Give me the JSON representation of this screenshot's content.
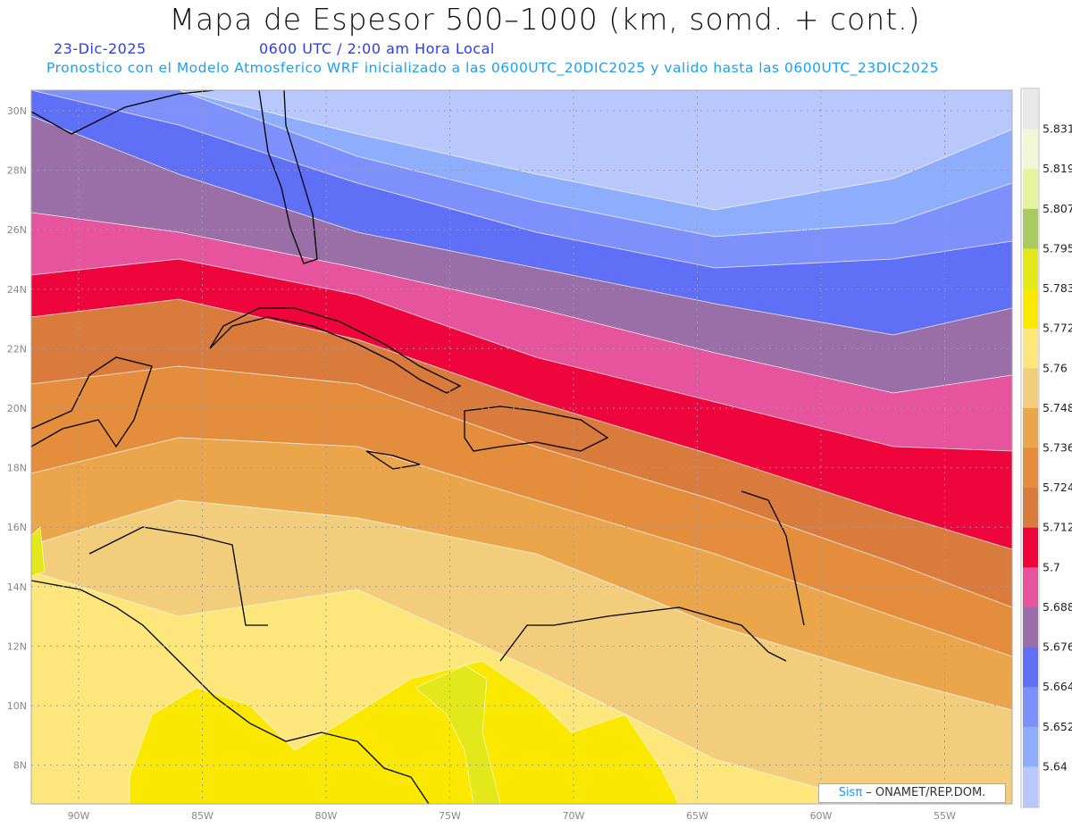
{
  "header": {
    "title": "Mapa de Espesor 500–1000 (km, somd. + cont.)",
    "date": "23-Dic-2025",
    "time": "0600 UTC / 2:00 am Hora Local",
    "info": "Pronostico con el Modelo Atmosferico WRF inicializado a las 0600UTC_20DIC2025 y valido hasta las  0600UTC_23DIC2025"
  },
  "axes": {
    "lon_labels": [
      "90W",
      "85W",
      "80W",
      "75W",
      "70W",
      "65W",
      "60W",
      "55W"
    ],
    "lat_labels": [
      "30N",
      "28N",
      "26N",
      "24N",
      "22N",
      "20N",
      "18N",
      "16N",
      "14N",
      "12N",
      "10N",
      "8N"
    ]
  },
  "colorbar": {
    "labels": [
      "5.831",
      "5.819",
      "5.807",
      "5.795",
      "5.783",
      "5.772",
      "5.76",
      "5.748",
      "5.736",
      "5.724",
      "5.712",
      "5.7",
      "5.688",
      "5.676",
      "5.664",
      "5.652",
      "5.64"
    ],
    "colors": [
      "#e8e8e8",
      "#f2f6d6",
      "#e6f39c",
      "#aacb62",
      "#e2e81a",
      "#fbe800",
      "#fde77c",
      "#f1cd7c",
      "#eba54a",
      "#e48d3d",
      "#d97b3c",
      "#ee053b",
      "#e6549e",
      "#9a6ea7",
      "#6070f6",
      "#7d90fb",
      "#8eadfc",
      "#b8c8fc"
    ]
  },
  "credit": {
    "brand": "Sisπ",
    "text": " –  ONAMET/REP.DOM."
  }
}
